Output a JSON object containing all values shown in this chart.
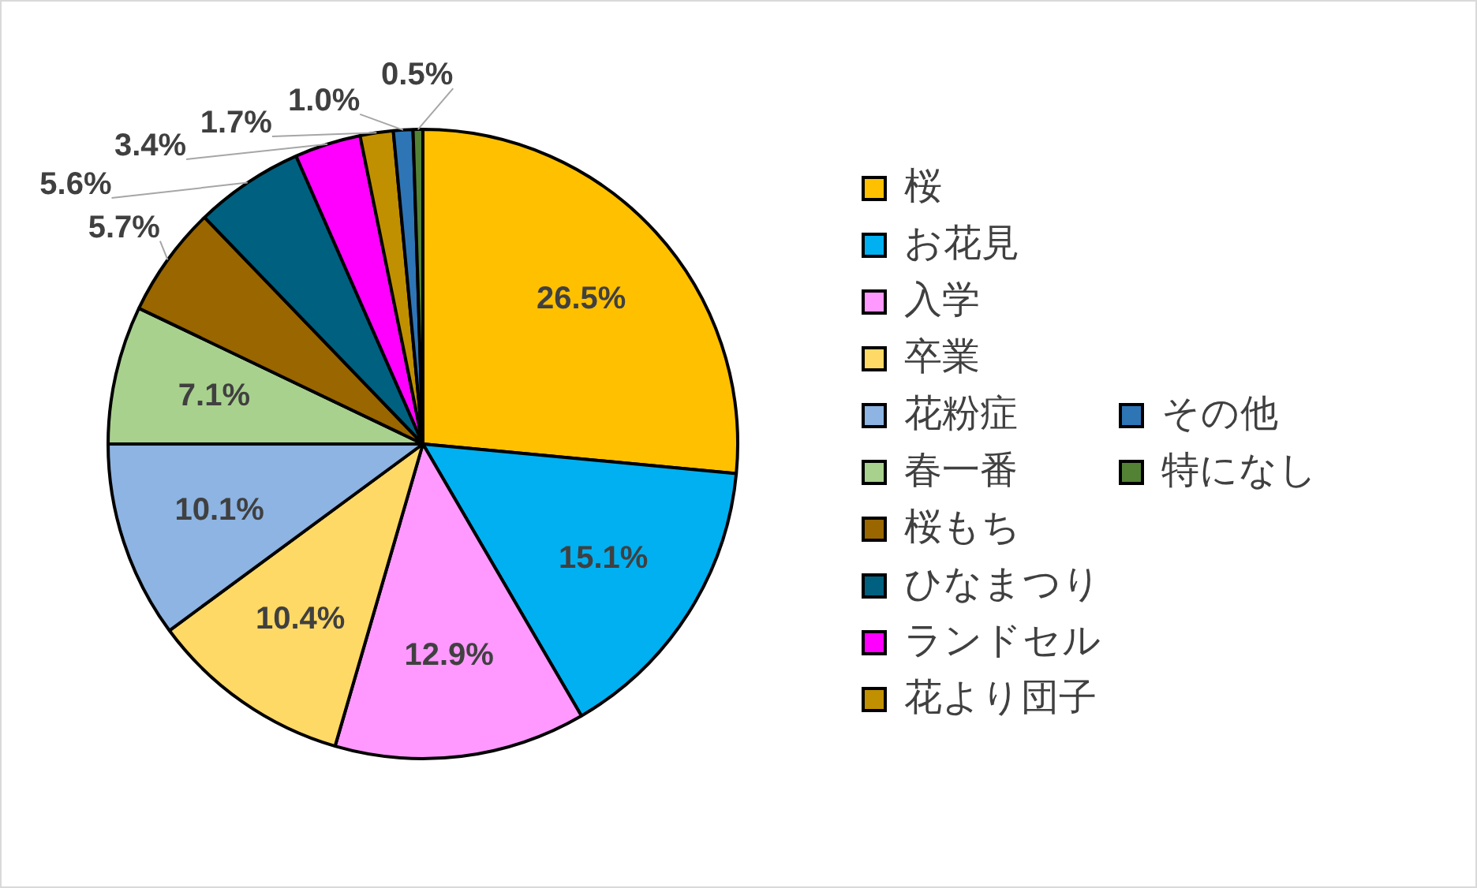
{
  "chart_data": {
    "type": "pie",
    "categories": [
      "桜",
      "お花見",
      "入学",
      "卒業",
      "花粉症",
      "春一番",
      "桜もち",
      "ひなまつり",
      "ランドセル",
      "花より団子",
      "その他",
      "特になし"
    ],
    "values": [
      26.5,
      15.1,
      12.9,
      10.4,
      10.1,
      7.1,
      5.7,
      5.6,
      3.4,
      1.7,
      1.0,
      0.5
    ],
    "colors": [
      "#ffc000",
      "#00b0f0",
      "#ff99ff",
      "#ffd966",
      "#8db4e2",
      "#a9d18e",
      "#996600",
      "#00607f",
      "#ff00ff",
      "#c09000",
      "#2e75b6",
      "#548235"
    ],
    "value_labels": [
      "26.5%",
      "15.1%",
      "12.9%",
      "10.4%",
      "10.1%",
      "7.1%",
      "5.7%",
      "5.6%",
      "3.4%",
      "1.7%",
      "1.0%",
      "0.5%"
    ],
    "legend": "right"
  }
}
